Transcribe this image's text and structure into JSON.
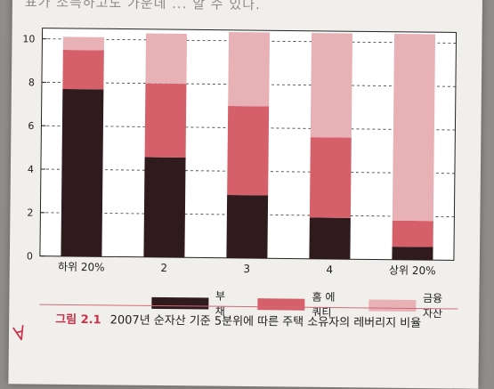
{
  "top_text": "표가 소득하고도 가운데 ... 알 수 있다.",
  "legend": [
    {
      "label": "부채",
      "color": "#2f1a1d"
    },
    {
      "label": "홈 에쿼티",
      "color": "#d5606a"
    },
    {
      "label": "금융 자산",
      "color": "#e7b1b6"
    }
  ],
  "caption": {
    "number": "그림 2.1",
    "text": "2007년 순자산 기준 5분위에 따른 주택 소유자의 레버리지 비율"
  },
  "chart_data": {
    "type": "bar",
    "stacked": true,
    "categories": [
      "하위 20%",
      "2",
      "3",
      "4",
      "상위 20%"
    ],
    "series": [
      {
        "name": "부채",
        "values": [
          7.7,
          4.6,
          2.9,
          1.9,
          0.6
        ]
      },
      {
        "name": "홈 에쿼티",
        "values": [
          1.8,
          3.4,
          4.1,
          3.7,
          1.2
        ]
      },
      {
        "name": "금융 자산",
        "values": [
          0.6,
          2.3,
          3.4,
          4.8,
          8.6
        ]
      }
    ],
    "ylim": [
      0,
      10
    ],
    "yticks": [
      0,
      2,
      4,
      6,
      8,
      10
    ],
    "grid": true,
    "legend_position": "bottom"
  }
}
